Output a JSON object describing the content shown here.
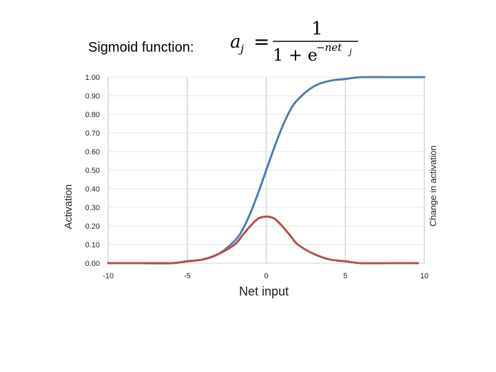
{
  "heading": "Sigmoid function:",
  "formula": {
    "lhs_var": "a",
    "lhs_sub": "j",
    "equals": "=",
    "numerator": "1",
    "den_prefix": "1 + e",
    "exponent": "−net",
    "exponent_sub": "j"
  },
  "chart_data": {
    "type": "line",
    "xlabel": "Net input",
    "ylabel": "Activation",
    "y2label": "Change in activation",
    "xlim": [
      -10,
      10
    ],
    "ylim": [
      0,
      1
    ],
    "xticks": [
      "-10",
      "-5",
      "0",
      "5",
      "10"
    ],
    "yticks": [
      "0.00",
      "0.10",
      "0.20",
      "0.30",
      "0.40",
      "0.50",
      "0.60",
      "0.70",
      "0.80",
      "0.90",
      "1.00"
    ],
    "grid": "vertical",
    "series": [
      {
        "color": "#4f7bb0",
        "x": [
          -10,
          -8,
          -6,
          -5,
          -4,
          -3,
          -2,
          -1.5,
          -1,
          -0.5,
          0,
          0.5,
          1,
          1.5,
          2,
          3,
          4,
          5,
          6,
          8,
          10
        ],
        "values": [
          0.0,
          0.0,
          0.0,
          0.01,
          0.02,
          0.05,
          0.12,
          0.18,
          0.27,
          0.38,
          0.5,
          0.62,
          0.73,
          0.82,
          0.88,
          0.95,
          0.98,
          0.99,
          1.0,
          1.0,
          1.0
        ]
      },
      {
        "color": "#b0504e",
        "x": [
          -10,
          -8,
          -6,
          -5,
          -4,
          -3,
          -2,
          -1.5,
          -1,
          -0.5,
          0,
          0.5,
          1,
          1.5,
          2,
          3,
          4,
          5,
          6,
          8,
          9.6
        ],
        "values": [
          0.0,
          0.0,
          0.0,
          0.01,
          0.02,
          0.05,
          0.1,
          0.15,
          0.2,
          0.24,
          0.25,
          0.24,
          0.2,
          0.15,
          0.1,
          0.05,
          0.02,
          0.01,
          0.0,
          0.0,
          0.0
        ]
      }
    ]
  }
}
